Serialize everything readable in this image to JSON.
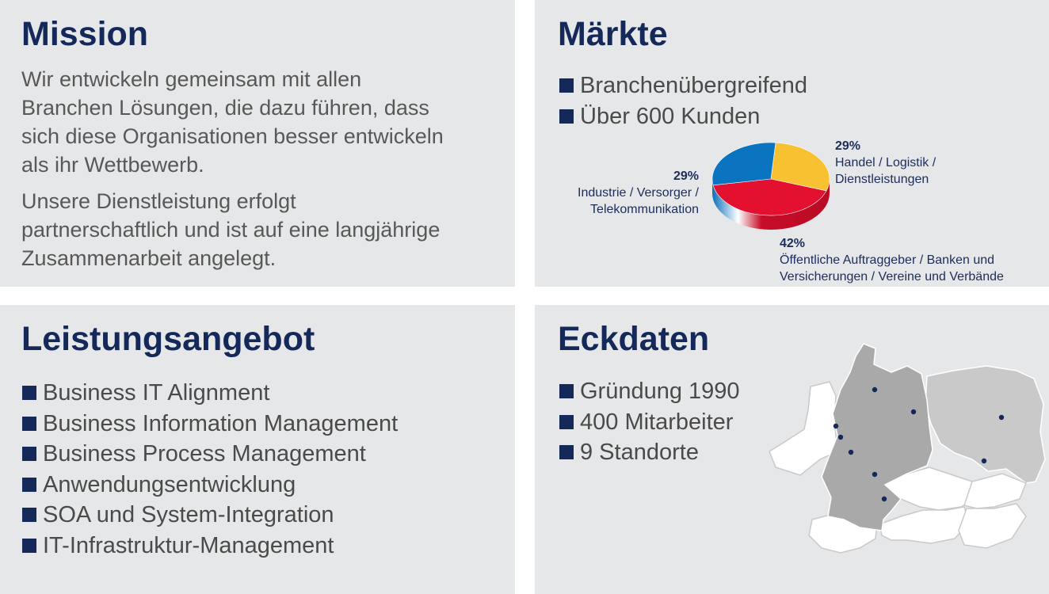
{
  "mission": {
    "title": "Mission",
    "paragraph1_lines": [
      "Wir entwickeln gemeinsam mit allen",
      "Branchen Lösungen, die dazu führen, dass",
      "sich diese Organisationen besser entwickeln",
      "als ihr Wettbewerb."
    ],
    "paragraph2_lines": [
      "Unsere Dienstleistung erfolgt",
      "partnerschaftlich und ist auf eine langjährige",
      "Zusammenarbeit angelegt."
    ]
  },
  "markets": {
    "title": "Märkte",
    "bullets": [
      "Branchenübergreifend",
      "Über 600 Kunden"
    ],
    "pie": {
      "slices": [
        {
          "percent": "29%",
          "value": 29,
          "label_lines": [
            "Handel / Logistik /",
            "Dienstleistungen"
          ],
          "color": "#f7c131"
        },
        {
          "percent": "42%",
          "value": 42,
          "label_lines": [
            "Öffentliche Auftraggeber / Banken und",
            "Versicherungen /  Vereine und Verbände"
          ],
          "color": "#e4102f"
        },
        {
          "percent": "29%",
          "value": 29,
          "label_lines": [
            "Industrie / Versorger /",
            "Telekommunikation"
          ],
          "color": "#0a74c0"
        }
      ]
    }
  },
  "services": {
    "title": "Leistungsangebot",
    "bullets": [
      "Business IT Alignment",
      "Business Information Management",
      "Business Process Management",
      "Anwendungsentwicklung",
      "SOA und System-Integration",
      "IT-Infrastruktur-Management"
    ]
  },
  "facts": {
    "title": "Eckdaten",
    "bullets": [
      "Gründung 1990",
      "400 Mitarbeiter",
      "9 Standorte"
    ],
    "map": {
      "location_count": 9
    }
  },
  "colors": {
    "panel": "#e6e7e8",
    "title": "#14295a",
    "bullet": "#14295a",
    "text": "#585858"
  }
}
